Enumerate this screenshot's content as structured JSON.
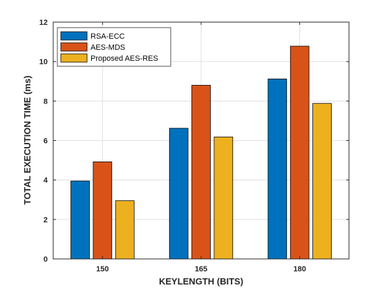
{
  "chart_data": {
    "type": "bar",
    "title": "",
    "xlabel": "KEYLENGTH (BITS)",
    "ylabel": "TOTAL EXECUTION TIME (ms)",
    "categories": [
      "150",
      "165",
      "180"
    ],
    "ylim": [
      0,
      12
    ],
    "yticks": [
      "0",
      "2",
      "4",
      "6",
      "8",
      "10",
      "12"
    ],
    "grid": true,
    "legend_position": "top-left",
    "series": [
      {
        "name": "RSA-ECC",
        "color": "#0072BD",
        "values": [
          3.95,
          6.62,
          9.12
        ]
      },
      {
        "name": "AES-MDS",
        "color": "#D95319",
        "values": [
          4.92,
          8.8,
          10.78
        ]
      },
      {
        "name": "Proposed AES-RES",
        "color": "#EDB120",
        "values": [
          2.95,
          6.18,
          7.88
        ]
      }
    ]
  }
}
